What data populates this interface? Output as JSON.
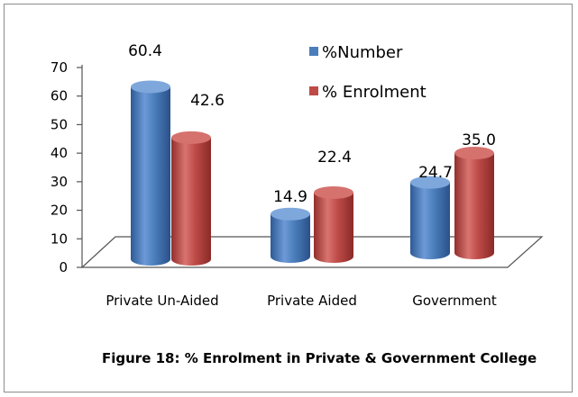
{
  "chart_data": {
    "type": "bar",
    "title": "",
    "caption": "Figure 18: % Enrolment in Private & Government College",
    "categories": [
      "Private Un-Aided",
      "Private Aided",
      "Government"
    ],
    "series": [
      {
        "name": "%Number",
        "values": [
          60.4,
          14.9,
          24.7
        ],
        "color": "#4a7ebb"
      },
      {
        "name": "% Enrolment",
        "values": [
          42.6,
          22.4,
          35.0
        ],
        "color": "#be4b48"
      }
    ],
    "data_labels": [
      [
        "60.4",
        "14.9",
        "24.7"
      ],
      [
        "42.6",
        "22.4",
        "35.0"
      ]
    ],
    "y_ticks": [
      "0",
      "10",
      "20",
      "30",
      "40",
      "50",
      "60",
      "70"
    ],
    "ylim": [
      0,
      70
    ],
    "grid": false,
    "legend_position": "top-right",
    "three_d": true
  }
}
